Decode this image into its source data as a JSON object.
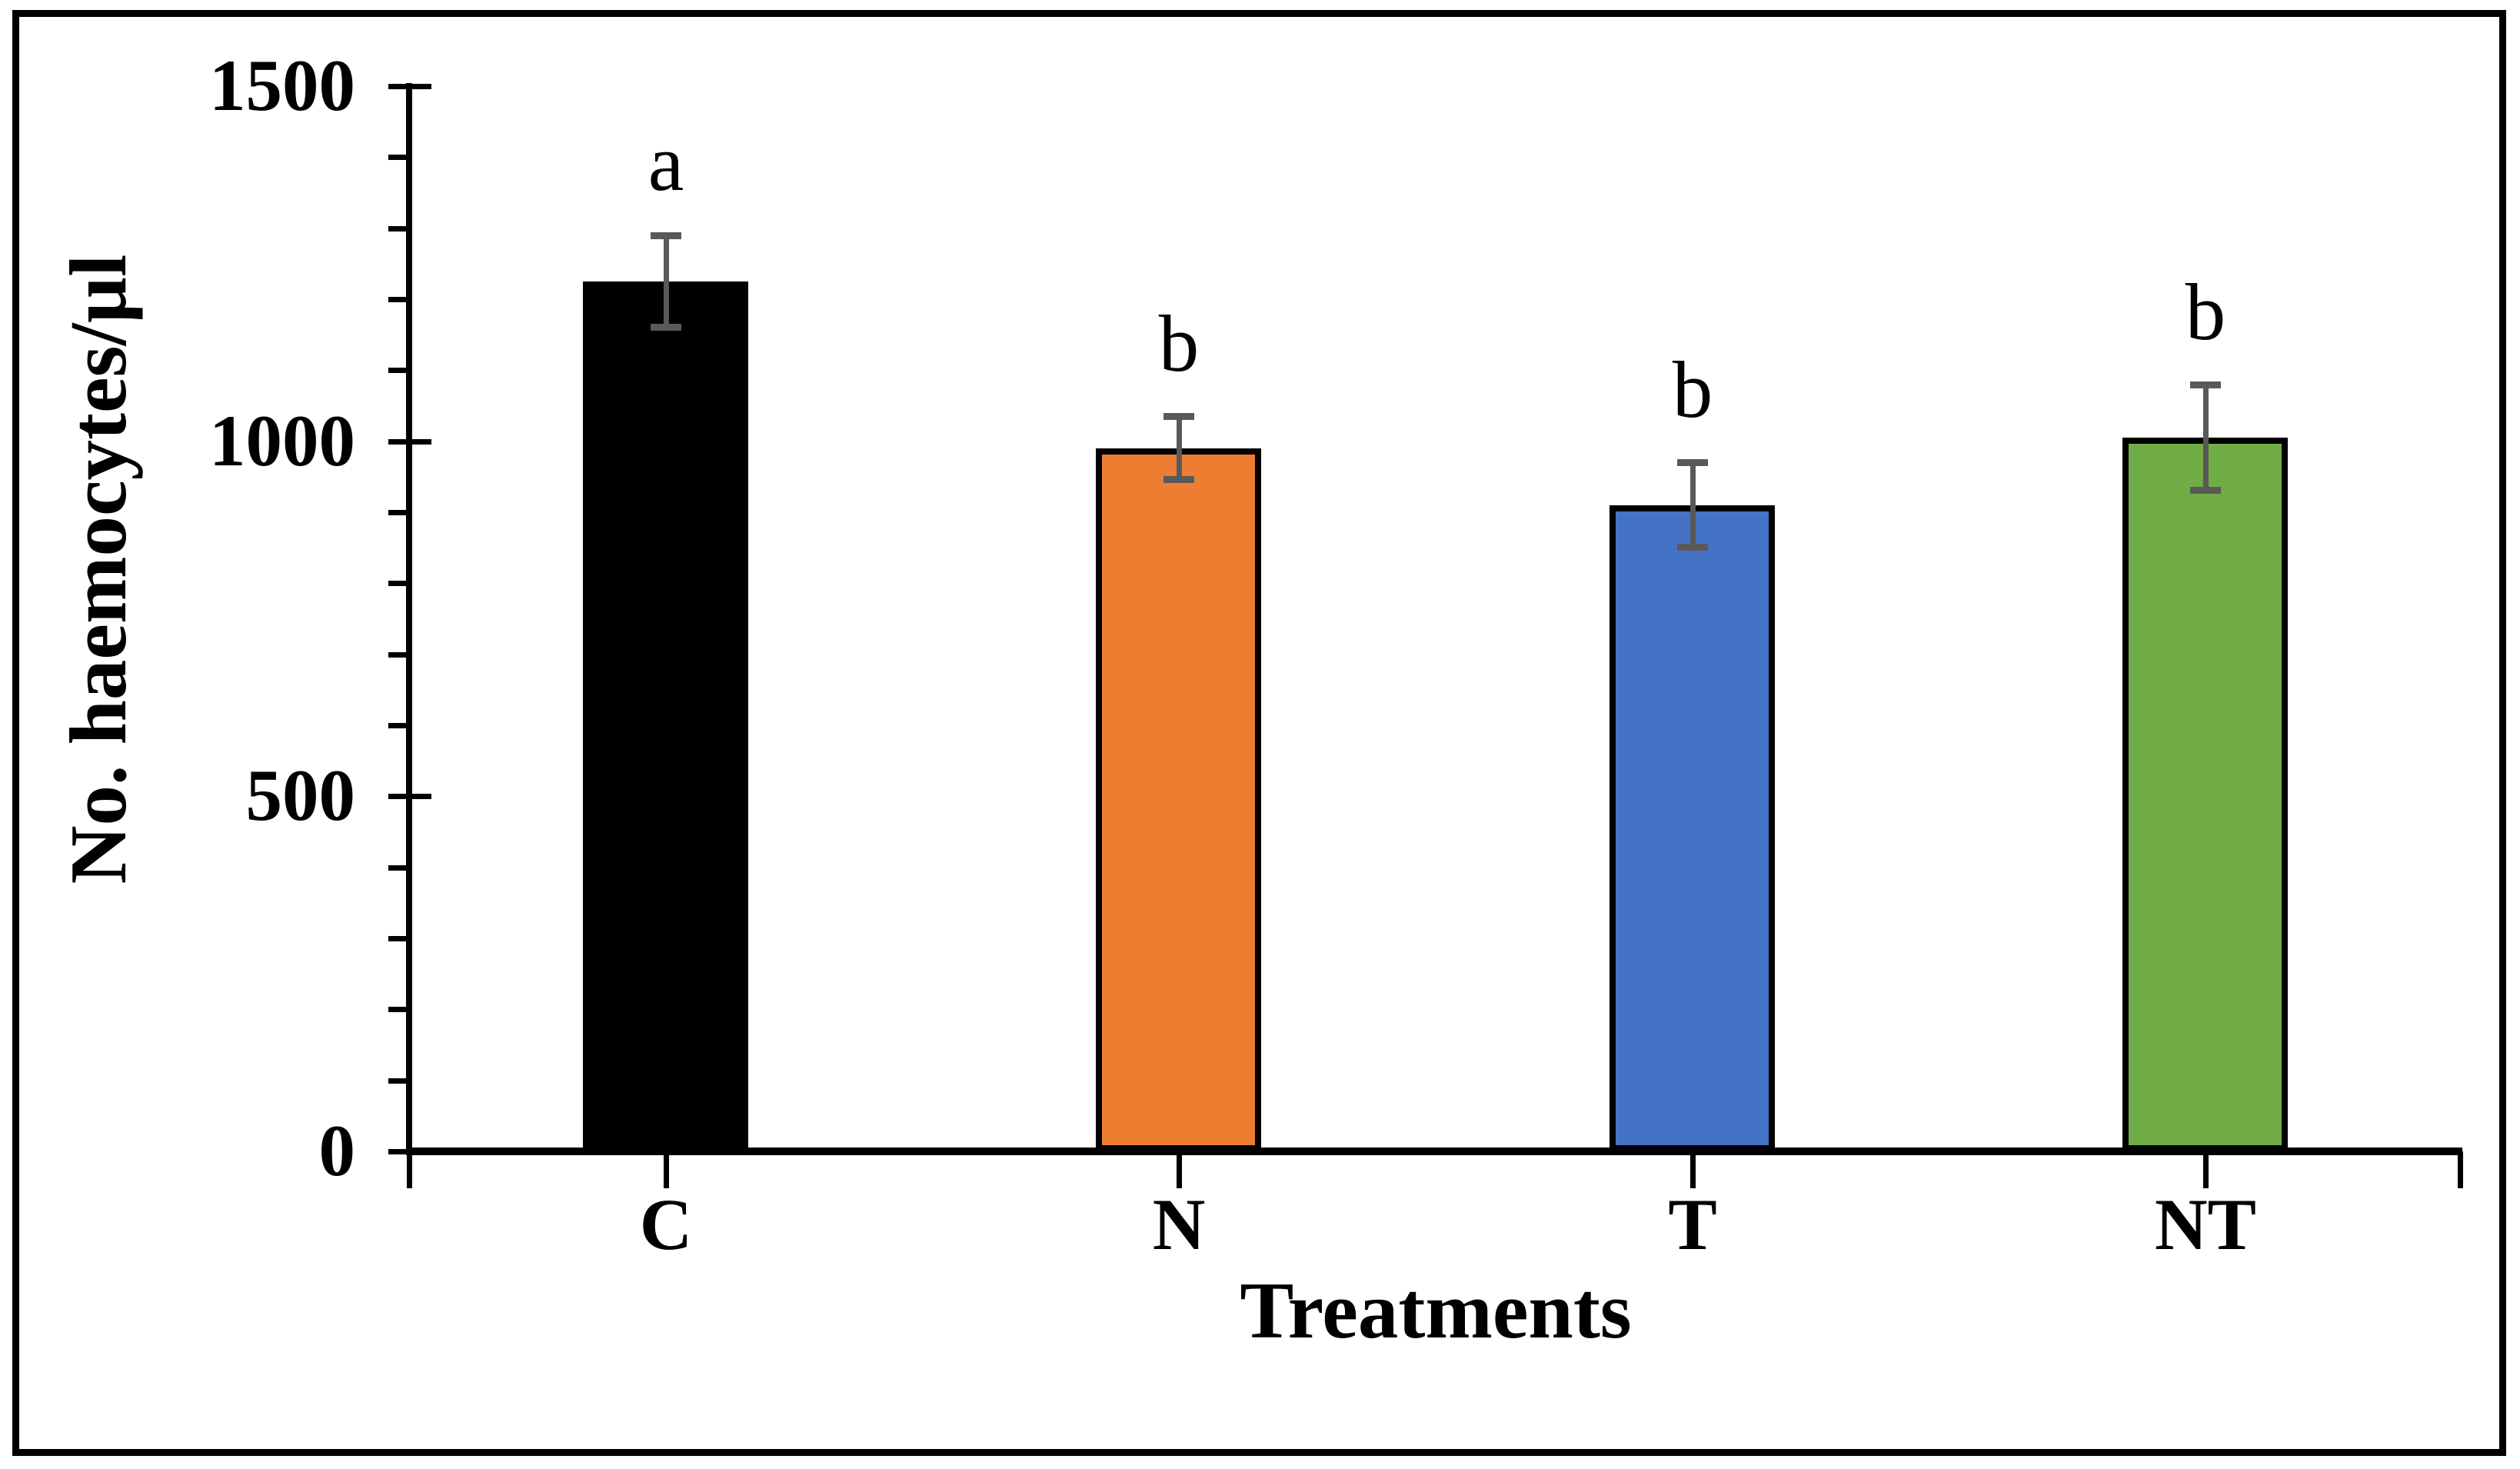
{
  "chart_data": {
    "type": "bar",
    "title": "",
    "xlabel": "Treatments",
    "ylabel": "No. haemocytes/µl",
    "categories": [
      "C",
      "N",
      "T",
      "NT"
    ],
    "values": [
      1225,
      990,
      910,
      1005
    ],
    "error_bars": [
      65,
      45,
      60,
      75
    ],
    "significance_letters": [
      "a",
      "b",
      "b",
      "b"
    ],
    "bar_colors": [
      "#000000",
      "#ED7D31",
      "#4472C4",
      "#70AD47"
    ],
    "bar_border_color": "#000000",
    "error_bar_color": "#595959",
    "ylim": [
      0,
      1500
    ],
    "y_major_ticks": [
      0,
      500,
      1000,
      1500
    ],
    "y_tick_labels": [
      "0",
      "500",
      "1000",
      "1500"
    ],
    "y_minor_step": 100,
    "grid": false,
    "legend": false,
    "frame_color": "#000000",
    "background_color": "#ffffff"
  }
}
